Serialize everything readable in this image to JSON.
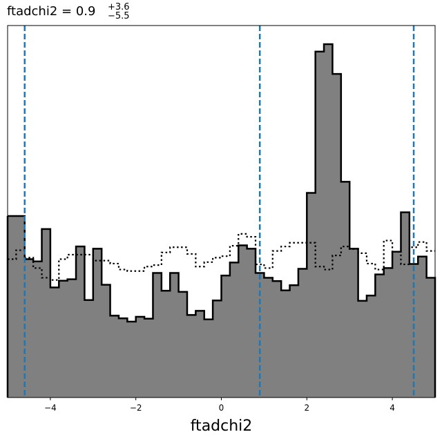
{
  "chart_data": {
    "type": "histogram",
    "title": {
      "prefix": "ftadchi2 = 0.9",
      "upper": "+3.6",
      "lower": "−5.5"
    },
    "xlabel": "ftadchi2",
    "ylabel": "",
    "xlim": [
      -5,
      5
    ],
    "ylim": [
      0,
      100
    ],
    "xticks": [
      -4,
      -2,
      0,
      2,
      4
    ],
    "xtick_labels": [
      "−4",
      "−2",
      "0",
      "2",
      "4"
    ],
    "bin_edges": [
      -5.0,
      -4.8,
      -4.6,
      -4.4,
      -4.2,
      -4.0,
      -3.8,
      -3.6,
      -3.4,
      -3.2,
      -3.0,
      -2.8,
      -2.6,
      -2.4,
      -2.2,
      -2.0,
      -1.8,
      -1.6,
      -1.4,
      -1.2,
      -1.0,
      -0.8,
      -0.6,
      -0.4,
      -0.2,
      0.0,
      0.2,
      0.4,
      0.6,
      0.8,
      1.0,
      1.2,
      1.4,
      1.6,
      1.8,
      2.0,
      2.2,
      2.4,
      2.6,
      2.8,
      3.0,
      3.2,
      3.4,
      3.6,
      3.8,
      4.0,
      4.2,
      4.4,
      4.6,
      4.8,
      5.0
    ],
    "series": [
      {
        "style": "filled",
        "fill": "#808080",
        "stroke": "#000000",
        "values": [
          48.8,
          48.8,
          37.2,
          36.6,
          45.3,
          29.6,
          31.4,
          31.8,
          40.6,
          26.2,
          40.0,
          30.3,
          22.0,
          21.3,
          20.4,
          21.7,
          21.2,
          33.5,
          28.7,
          33.5,
          28.4,
          22.2,
          23.3,
          21.0,
          26.1,
          32.8,
          36.3,
          40.9,
          40.0,
          33.5,
          32.2,
          31.3,
          28.8,
          30.2,
          34.6,
          55.0,
          93.0,
          95.0,
          87.0,
          58.0,
          40.0,
          26.0,
          27.4,
          33.1,
          34.8,
          39.2,
          49.8,
          35.9,
          37.9,
          32.2
        ]
      },
      {
        "style": "dotted",
        "stroke": "#000000",
        "values": [
          37.2,
          39.6,
          37.6,
          34.8,
          32.2,
          31.6,
          37.2,
          38.4,
          38.4,
          38.4,
          36.8,
          36.8,
          36.0,
          34.4,
          34.0,
          34.0,
          35.2,
          35.6,
          39.0,
          40.4,
          40.4,
          38.6,
          35.2,
          36.4,
          37.6,
          38.0,
          40.8,
          44.0,
          43.2,
          35.8,
          34.8,
          39.4,
          40.6,
          41.6,
          41.6,
          41.6,
          35.2,
          34.4,
          38.2,
          40.6,
          39.9,
          38.8,
          36.0,
          34.4,
          42.2,
          39.2,
          35.8,
          40.4,
          41.8,
          39.4
        ]
      }
    ],
    "vlines": {
      "style": "dashed",
      "color": "#1f77b4",
      "x": [
        -4.6,
        0.9,
        4.5
      ]
    },
    "grid": false,
    "legend": "none"
  }
}
